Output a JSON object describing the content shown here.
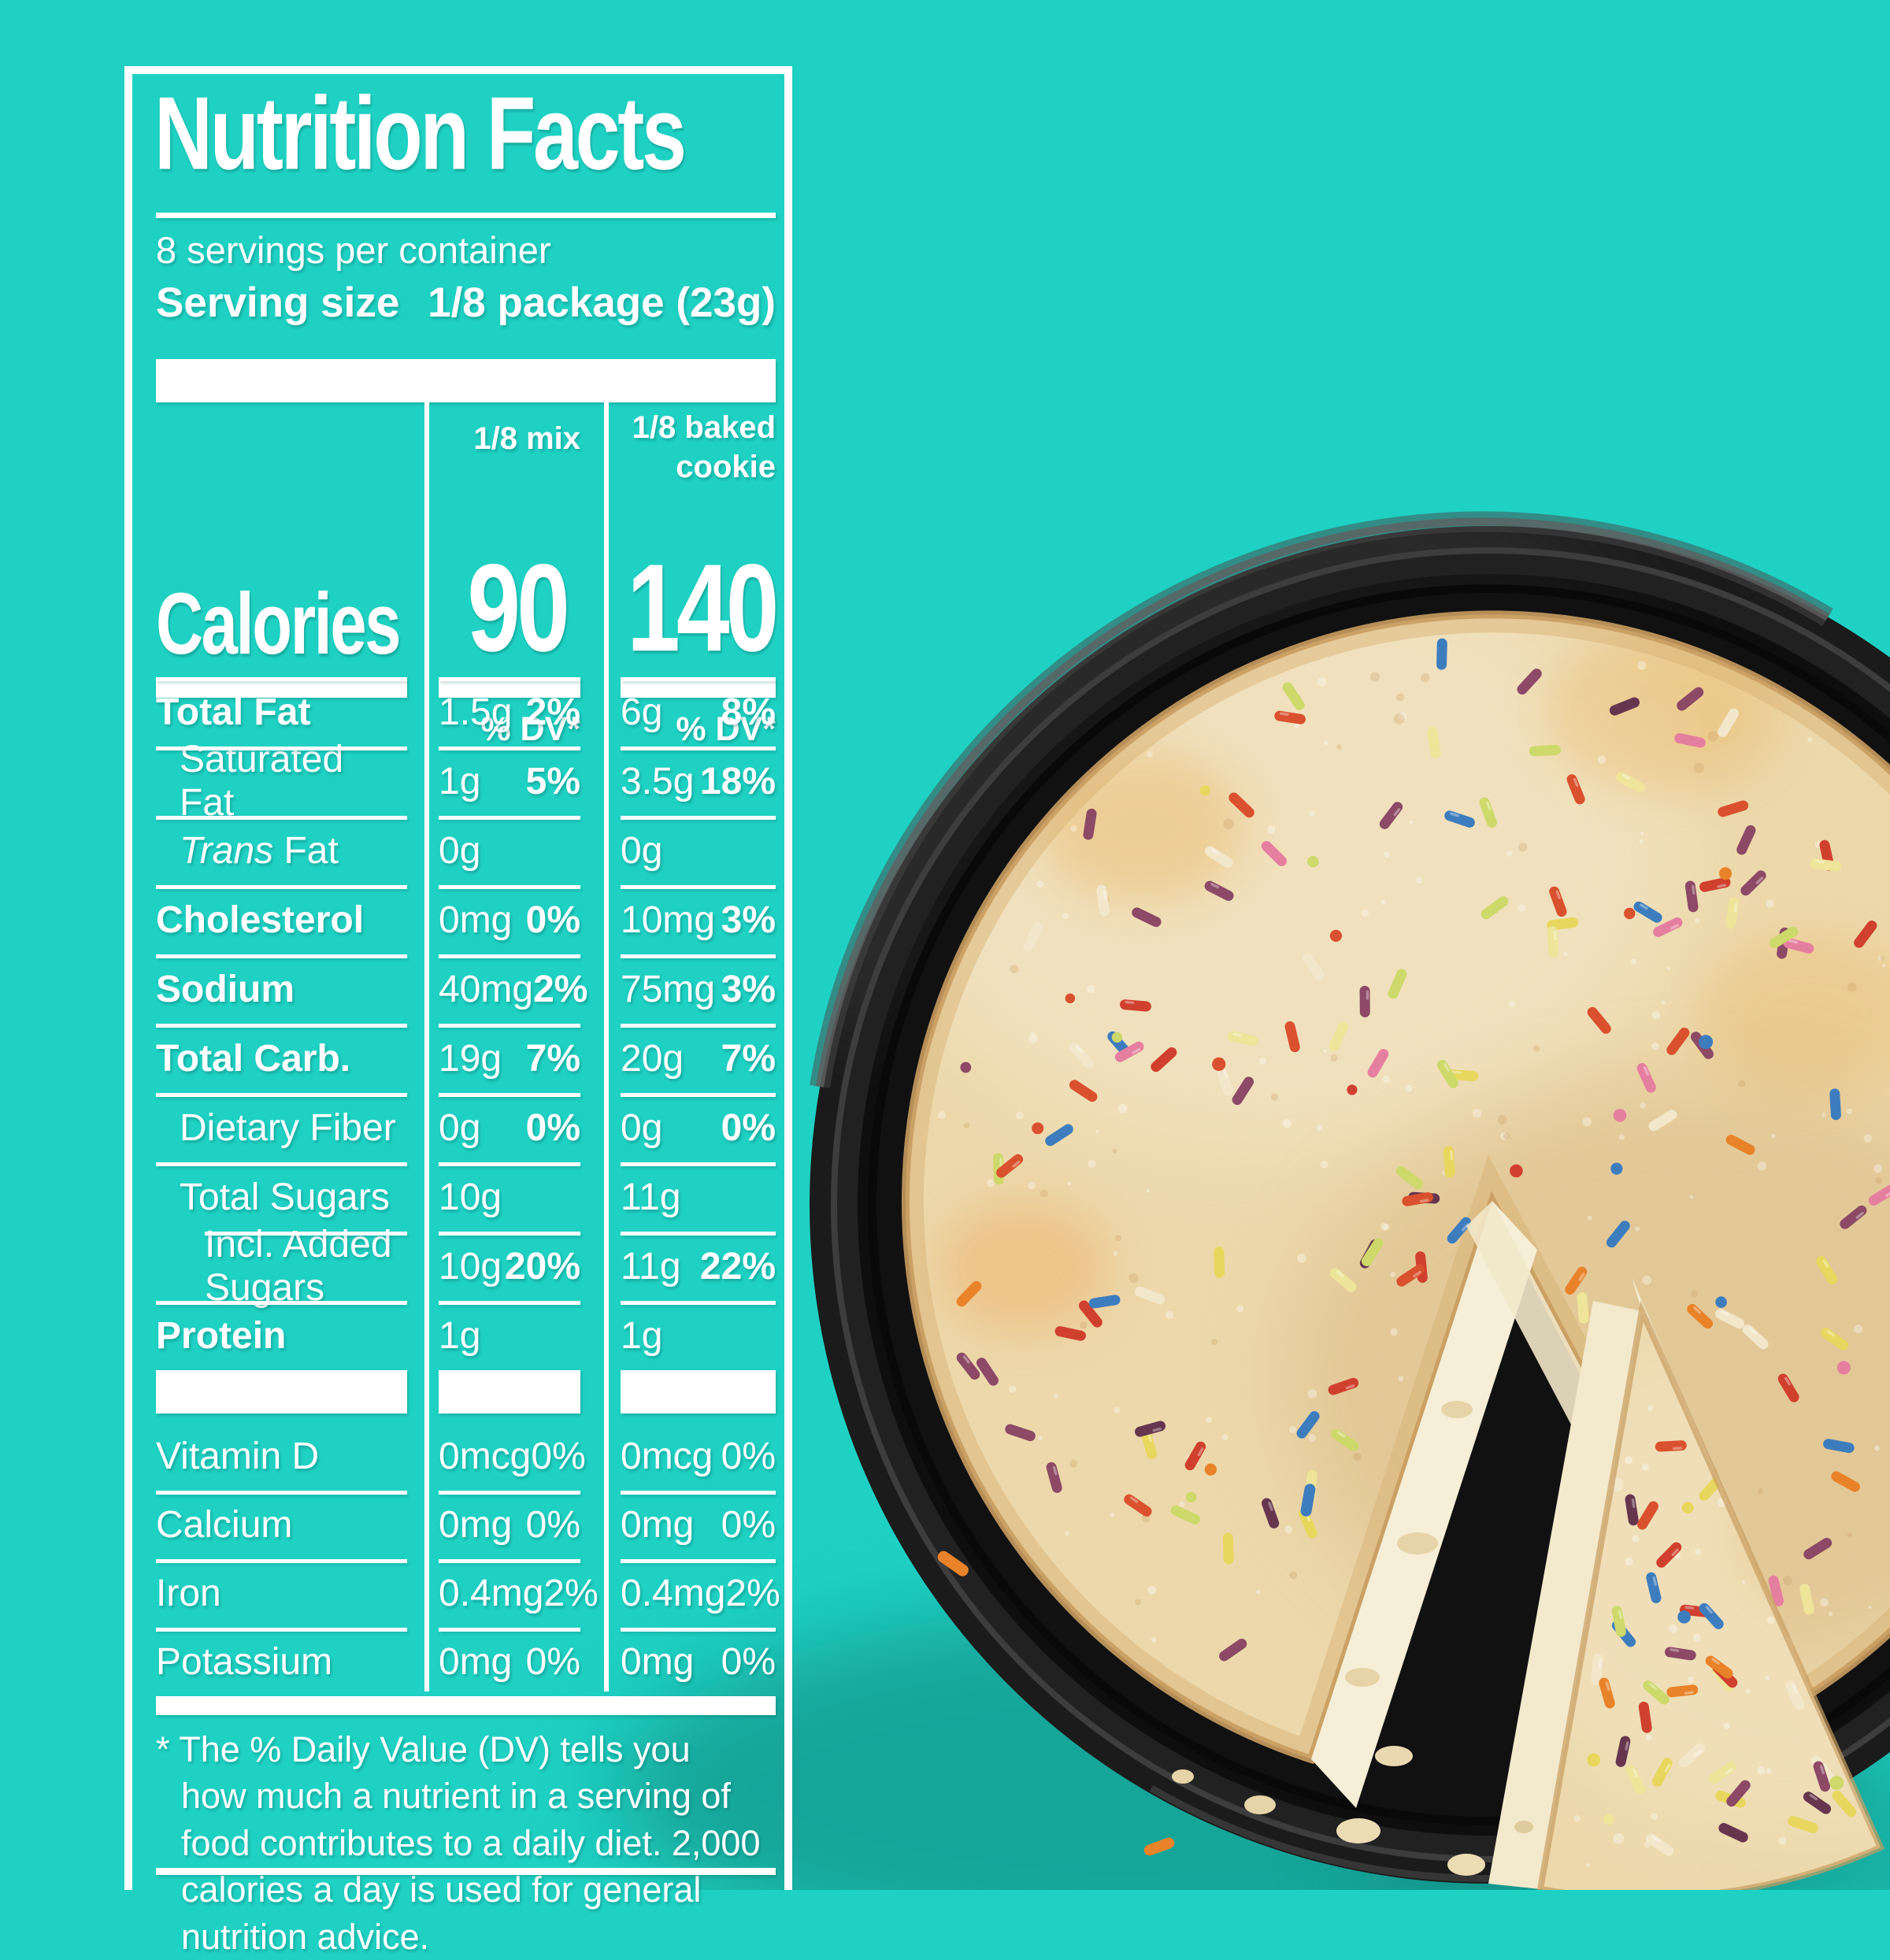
{
  "colors": {
    "background": "#1fd1c3",
    "label_white": "#ffffff",
    "pan_dark": "#1b1b1b",
    "pan_floor": "#111111",
    "pan_rim": "#3d3d3d",
    "pan_highlight": "#5f5f5f",
    "cookie_mid": "#ecd8ab",
    "cookie_light": "#f5e9c8",
    "cookie_edge": "#c89c60",
    "crumb_face": "#f6eed6",
    "shadow_teal": "#0a7a71",
    "sprinkle_palette": [
      "#e8832a",
      "#d9512f",
      "#3e7dbd",
      "#8c4a66",
      "#66364f",
      "#e8d75e",
      "#eee49a",
      "#f2e7cb",
      "#e57f9f",
      "#cdd96b",
      "#d0402e"
    ]
  },
  "label": {
    "title": "Nutrition Facts",
    "servings_per_container": "8 servings per container",
    "serving_size_label": "Serving size",
    "serving_size_value": "1/8 package (23g)",
    "column_headers": [
      "1/8 mix",
      "1/8 baked cookie"
    ],
    "calories": {
      "label": "Calories",
      "mix": "90",
      "baked": "140"
    },
    "dv_header": "% DV*",
    "rows": [
      {
        "style": "bold",
        "name": "Total Fat",
        "mix_amt": "1.5g",
        "mix_dv": "2%",
        "baked_amt": "6g",
        "baked_dv": "8%"
      },
      {
        "style": "indent1",
        "name": "Saturated Fat",
        "mix_amt": "1g",
        "mix_dv": "5%",
        "baked_amt": "3.5g",
        "baked_dv": "18%"
      },
      {
        "style": "indent1",
        "italic_prefix": "Trans",
        "name": " Fat",
        "mix_amt": "0g",
        "mix_dv": "",
        "baked_amt": "0g",
        "baked_dv": ""
      },
      {
        "style": "bold",
        "name": "Cholesterol",
        "mix_amt": "0mg",
        "mix_dv": "0%",
        "baked_amt": "10mg",
        "baked_dv": "3%"
      },
      {
        "style": "bold",
        "name": "Sodium",
        "mix_amt": "40mg",
        "mix_dv": "2%",
        "baked_amt": "75mg",
        "baked_dv": "3%"
      },
      {
        "style": "bold",
        "name": "Total Carb.",
        "mix_amt": "19g",
        "mix_dv": "7%",
        "baked_amt": "20g",
        "baked_dv": "7%"
      },
      {
        "style": "indent1",
        "name": "Dietary Fiber",
        "mix_amt": "0g",
        "mix_dv": "0%",
        "baked_amt": "0g",
        "baked_dv": "0%"
      },
      {
        "style": "indent1",
        "name": "Total Sugars",
        "mix_amt": "10g",
        "mix_dv": "",
        "baked_amt": "11g",
        "baked_dv": ""
      },
      {
        "style": "indent2",
        "name": "Incl. Added Sugars",
        "mix_amt": "10g",
        "mix_dv": "20%",
        "baked_amt": "11g",
        "baked_dv": "22%"
      },
      {
        "style": "bold",
        "name": "Protein",
        "mix_amt": "1g",
        "mix_dv": "",
        "baked_amt": "1g",
        "baked_dv": ""
      }
    ],
    "vitamins": [
      {
        "style": "vitamin",
        "name": "Vitamin D",
        "mix_amt": "0mcg",
        "mix_dv": "0%",
        "baked_amt": "0mcg",
        "baked_dv": "0%"
      },
      {
        "style": "vitamin",
        "name": "Calcium",
        "mix_amt": "0mg",
        "mix_dv": "0%",
        "baked_amt": "0mg",
        "baked_dv": "0%"
      },
      {
        "style": "vitamin",
        "name": "Iron",
        "mix_amt": "0.4mg",
        "mix_dv": "2%",
        "baked_amt": "0.4mg",
        "baked_dv": "2%"
      },
      {
        "style": "vitamin",
        "name": "Potassium",
        "mix_amt": "0mg",
        "mix_dv": "0%",
        "baked_amt": "0mg",
        "baked_dv": "0%"
      }
    ],
    "footnote": "* The % Daily Value (DV) tells you how much a nutrient in a serving of food contributes to a daily diet. 2,000 calories a day is used for general nutrition advice."
  },
  "photo": {
    "description": "Baked sprinkle cookie cake in round black pan with one slice cut"
  }
}
